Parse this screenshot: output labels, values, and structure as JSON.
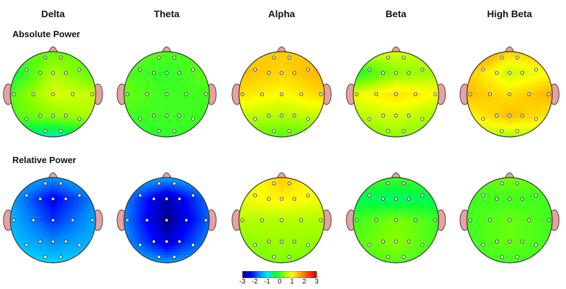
{
  "bands": [
    "Delta",
    "Theta",
    "Alpha",
    "Beta",
    "High Beta"
  ],
  "rows": [
    {
      "label": "Absolute Power",
      "levels": [
        [
          [
            0.0,
            0.2,
            0.2
          ],
          [
            -0.4,
            0.6,
            0.1
          ],
          [
            0.1,
            0.8,
            0.7
          ],
          [
            0.1,
            0.4,
            0.6
          ],
          [
            -0.6,
            -0.8,
            -0.4
          ]
        ],
        [
          [
            0.2,
            0.1,
            0.0
          ],
          [
            0.1,
            -0.1,
            0.2
          ],
          [
            0.2,
            0.0,
            0.0
          ],
          [
            0.0,
            0.0,
            0.0
          ],
          [
            -0.2,
            -0.1,
            -0.1
          ]
        ],
        [
          [
            1.3,
            1.4,
            1.3
          ],
          [
            1.5,
            1.3,
            1.6
          ],
          [
            1.2,
            1.0,
            1.3
          ],
          [
            0.7,
            0.6,
            0.7
          ],
          [
            0.2,
            0.1,
            0.2
          ]
        ],
        [
          [
            0.8,
            0.8,
            0.7
          ],
          [
            -0.3,
            0.4,
            0.5
          ],
          [
            0.9,
            1.2,
            1.0
          ],
          [
            0.6,
            0.8,
            0.5
          ],
          [
            0.2,
            0.4,
            0.3
          ]
        ],
        [
          [
            2.2,
            1.3,
            1.6
          ],
          [
            1.4,
            0.7,
            1.0
          ],
          [
            1.5,
            1.2,
            1.6
          ],
          [
            1.0,
            1.5,
            1.1
          ],
          [
            0.6,
            0.5,
            0.7
          ]
        ]
      ]
    },
    {
      "label": "Relative Power",
      "levels": [
        [
          [
            -1.3,
            -1.5,
            -1.2
          ],
          [
            -1.4,
            -2.4,
            -1.6
          ],
          [
            -1.3,
            -2.1,
            -1.4
          ],
          [
            -1.2,
            -1.6,
            -1.3
          ],
          [
            -1.0,
            -1.1,
            -1.1
          ]
        ],
        [
          [
            -1.3,
            -1.4,
            -1.3
          ],
          [
            -1.6,
            -2.8,
            -1.7
          ],
          [
            -1.6,
            -3.0,
            -1.8
          ],
          [
            -1.5,
            -2.6,
            -1.6
          ],
          [
            -1.2,
            -1.5,
            -1.3
          ]
        ],
        [
          [
            0.6,
            1.4,
            0.8
          ],
          [
            0.9,
            1.1,
            0.9
          ],
          [
            0.6,
            0.6,
            0.6
          ],
          [
            0.4,
            0.5,
            0.4
          ],
          [
            0.3,
            0.3,
            0.3
          ]
        ],
        [
          [
            0.1,
            0.0,
            0.1
          ],
          [
            -0.4,
            -0.5,
            -0.4
          ],
          [
            0.0,
            0.3,
            0.0
          ],
          [
            0.1,
            0.4,
            0.0
          ],
          [
            0.0,
            0.1,
            0.0
          ]
        ],
        [
          [
            0.1,
            0.3,
            0.1
          ],
          [
            0.0,
            0.0,
            0.0
          ],
          [
            0.0,
            0.2,
            0.0
          ],
          [
            0.0,
            0.2,
            0.0
          ],
          [
            0.0,
            0.0,
            0.0
          ]
        ]
      ]
    }
  ],
  "scale": {
    "ticks": [
      "-3",
      "-2",
      "-1",
      "0",
      "1",
      "2",
      "3"
    ],
    "colors": [
      "#00008B",
      "#0000FF",
      "#0080FF",
      "#00E5FF",
      "#00FF40",
      "#7FFF00",
      "#FFFF00",
      "#FFA500",
      "#FF4000",
      "#CC0000"
    ]
  }
}
